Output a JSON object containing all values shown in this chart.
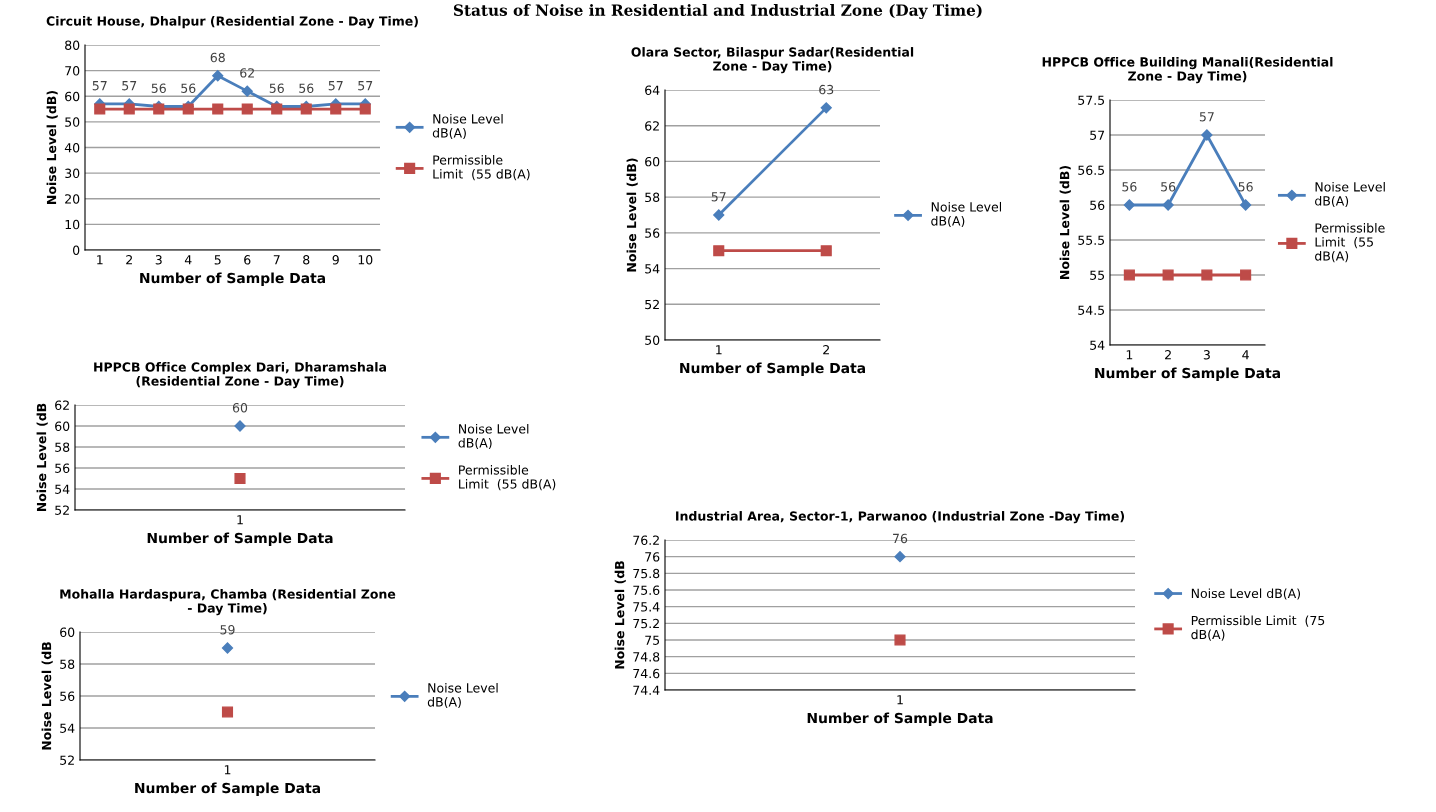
{
  "chart_data": [
    {
      "type": "other",
      "title": "Status of Noise in Residential and Industrial Zone (Day Time)"
    },
    {
      "type": "line",
      "title": "Circuit House, Dhalpur (Residential Zone - Day Time)",
      "xlabel": "Number of Sample Data",
      "ylabel": "Noise Level (dB)",
      "categories": [
        "1",
        "2",
        "3",
        "4",
        "5",
        "6",
        "7",
        "8",
        "9",
        "10"
      ],
      "ylim": [
        0,
        80
      ],
      "yticks": [
        0,
        10,
        20,
        30,
        40,
        50,
        60,
        70,
        80
      ],
      "grid": "y",
      "legend": "right",
      "series": [
        {
          "name": "Noise Level\ndB(A)",
          "color": "#4a7ebb",
          "marker": "diamond",
          "values": [
            57,
            57,
            56,
            56,
            68,
            62,
            56,
            56,
            57,
            57
          ],
          "value_labels": [
            "57",
            "57",
            "56",
            "56",
            "68",
            "62",
            "56",
            "56",
            "57",
            "57"
          ]
        },
        {
          "name": "Permissible\nLimit  (55 dB(A)",
          "color": "#be4b48",
          "marker": "square",
          "values": [
            55,
            55,
            55,
            55,
            55,
            55,
            55,
            55,
            55,
            55
          ]
        }
      ]
    },
    {
      "type": "line",
      "title": "Olara Sector, Bilaspur Sadar(Residential\nZone - Day Time)",
      "xlabel": "Number of Sample Data",
      "ylabel": "Noise Level (dB)",
      "categories": [
        "1",
        "2"
      ],
      "ylim": [
        50,
        64
      ],
      "yticks": [
        50,
        52,
        54,
        56,
        58,
        60,
        62,
        64
      ],
      "grid": "y",
      "legend": "right",
      "series": [
        {
          "name": "Noise Level\ndB(A)",
          "color": "#4a7ebb",
          "marker": "diamond",
          "values": [
            57,
            63
          ],
          "value_labels": [
            "57",
            "63"
          ]
        },
        {
          "color": "#be4b48",
          "marker": "square",
          "values": [
            55,
            55
          ]
        }
      ]
    },
    {
      "type": "line",
      "title": "HPPCB Office Building Manali(Residential\nZone - Day Time)",
      "xlabel": "Number of Sample Data",
      "ylabel": "Noise Level (dB)",
      "categories": [
        "1",
        "2",
        "3",
        "4"
      ],
      "ylim": [
        54,
        57.5
      ],
      "yticks": [
        54,
        54.5,
        55,
        55.5,
        56,
        56.5,
        57,
        57.5
      ],
      "grid": "y",
      "legend": "right",
      "series": [
        {
          "name": "Noise Level\ndB(A)",
          "color": "#4a7ebb",
          "marker": "diamond",
          "values": [
            56,
            56,
            57,
            56
          ],
          "value_labels": [
            "56",
            "56",
            "57",
            "56"
          ]
        },
        {
          "name": "Permissible\nLimit  (55\ndB(A)",
          "color": "#be4b48",
          "marker": "square",
          "values": [
            55,
            55,
            55,
            55
          ]
        }
      ]
    },
    {
      "type": "line",
      "title": "HPPCB Office Complex Dari, Dharamshala\n(Residential Zone - Day Time)",
      "xlabel": "Number of Sample Data",
      "ylabel": "Noise Level (dB",
      "categories": [
        "1"
      ],
      "ylim": [
        52,
        62
      ],
      "yticks": [
        52,
        54,
        56,
        58,
        60,
        62
      ],
      "grid": "y",
      "legend": "right",
      "series": [
        {
          "name": "Noise Level\ndB(A)",
          "color": "#4a7ebb",
          "marker": "diamond",
          "values": [
            60
          ],
          "value_labels": [
            "60"
          ]
        },
        {
          "name": "Permissible\nLimit  (55 dB(A)",
          "color": "#be4b48",
          "marker": "square",
          "values": [
            55
          ]
        }
      ]
    },
    {
      "type": "line",
      "title": "Industrial Area, Sector-1, Parwanoo (Industrial Zone -Day Time)",
      "xlabel": "Number of Sample Data",
      "ylabel": "Noise Level (dB",
      "categories": [
        "1"
      ],
      "ylim": [
        74.4,
        76.2
      ],
      "yticks": [
        74.4,
        74.6,
        74.8,
        75,
        75.2,
        75.4,
        75.6,
        75.8,
        76,
        76.2
      ],
      "grid": "y",
      "legend": "right",
      "series": [
        {
          "name": "Noise Level dB(A)",
          "color": "#4a7ebb",
          "marker": "diamond",
          "values": [
            76
          ],
          "value_labels": [
            "76"
          ]
        },
        {
          "name": "Permissible Limit  (75\ndB(A)",
          "color": "#be4b48",
          "marker": "square",
          "values": [
            75
          ]
        }
      ]
    },
    {
      "type": "line",
      "title": "Mohalla Hardaspura, Chamba (Residential Zone\n- Day Time)",
      "xlabel": "Number of Sample Data",
      "ylabel": "Noise Level (dB",
      "categories": [
        "1"
      ],
      "ylim": [
        52,
        60
      ],
      "yticks": [
        52,
        54,
        56,
        58,
        60
      ],
      "grid": "y",
      "legend": "right",
      "series": [
        {
          "name": "Noise Level\ndB(A)",
          "color": "#4a7ebb",
          "marker": "diamond",
          "values": [
            59
          ],
          "value_labels": [
            "59"
          ]
        },
        {
          "color": "#be4b48",
          "marker": "square",
          "values": [
            55
          ]
        }
      ]
    }
  ]
}
